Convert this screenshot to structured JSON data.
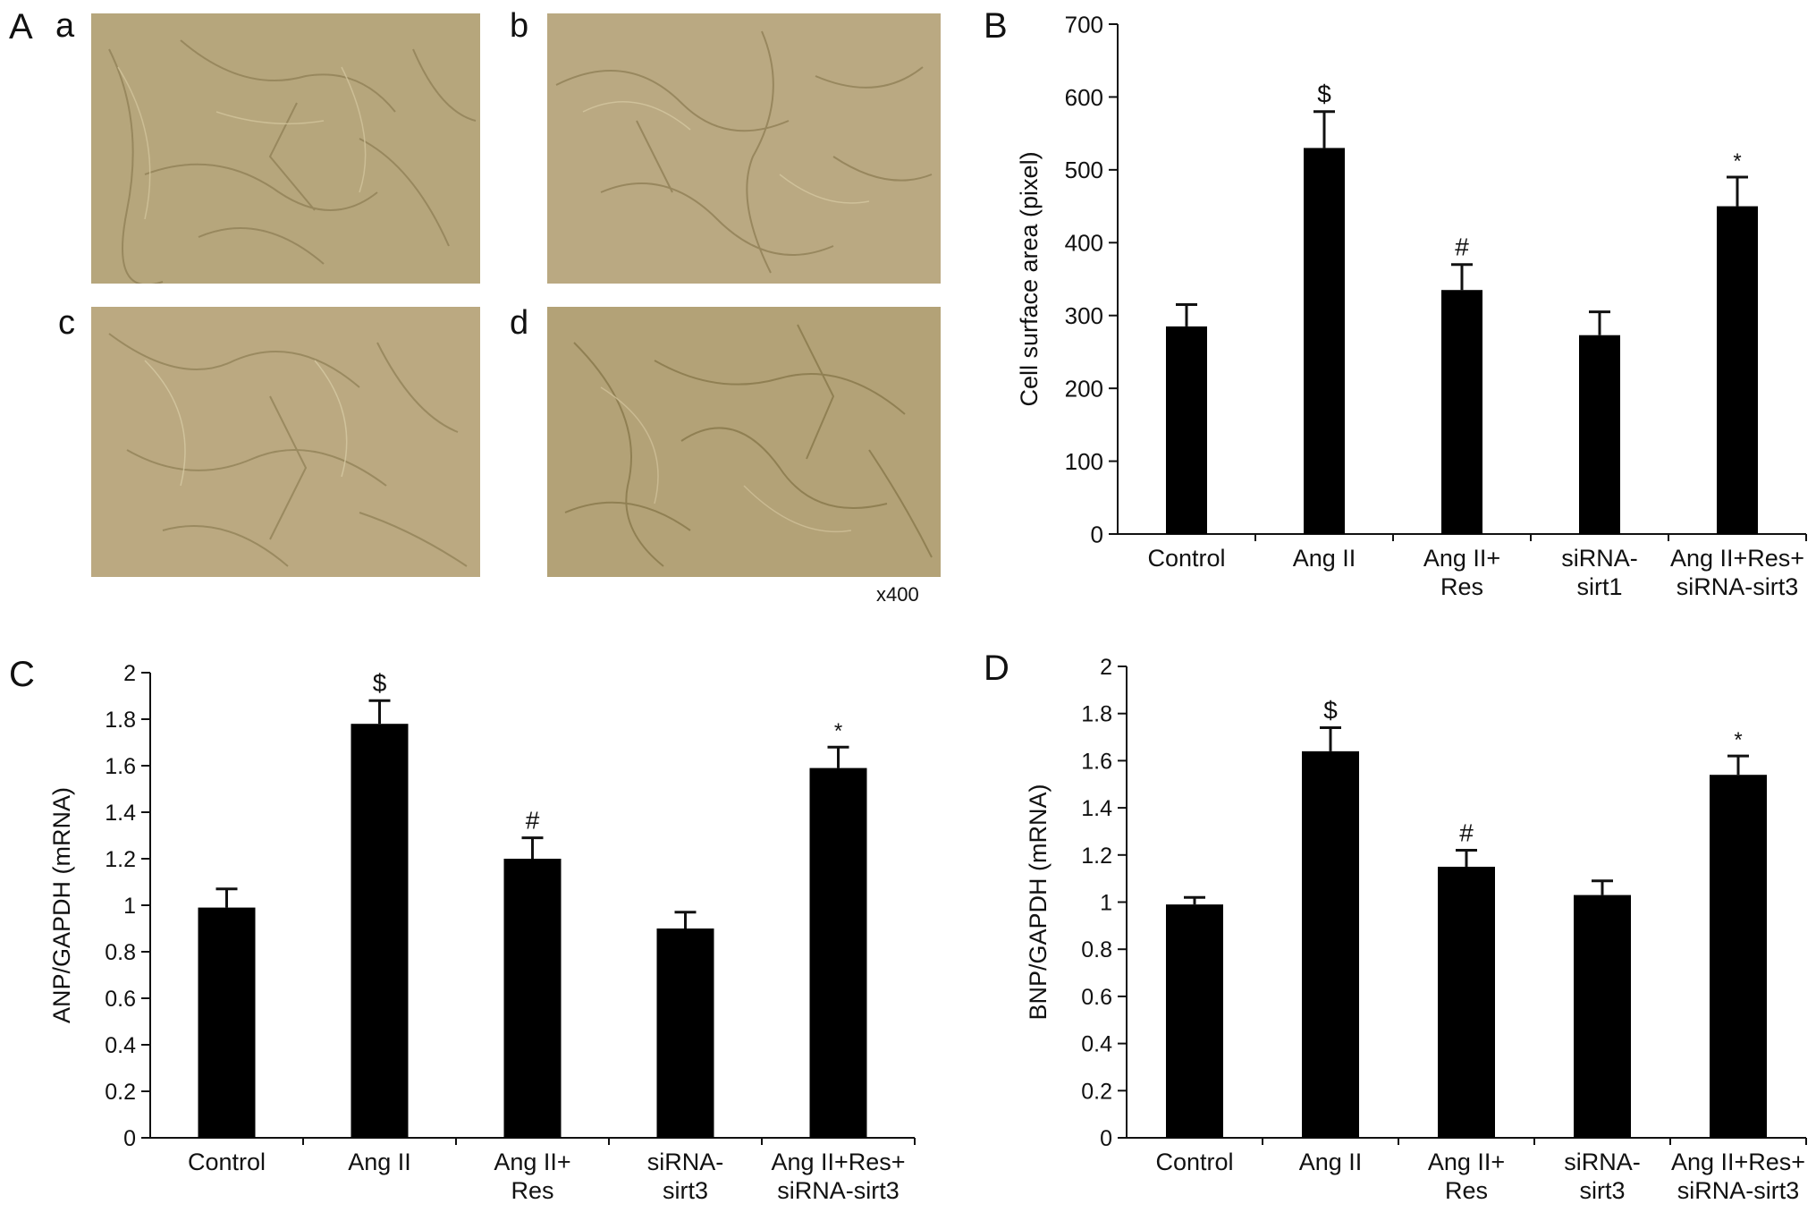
{
  "panels": {
    "A": {
      "letter": "A",
      "sublabels": [
        "a",
        "b",
        "c",
        "d"
      ],
      "magnification": "x400",
      "image_colors": {
        "base": "#b5a47a",
        "light": "#c7b78d",
        "dark": "#8f7f55"
      }
    }
  },
  "chart_data": [
    {
      "panel": "B",
      "type": "bar",
      "categories": [
        [
          "Control"
        ],
        [
          "Ang II"
        ],
        [
          "Ang II+",
          "Res"
        ],
        [
          "siRNA-",
          "sirt1"
        ],
        [
          "Ang II+Res+",
          "siRNA-sirt3"
        ]
      ],
      "values": [
        285,
        530,
        335,
        273,
        450
      ],
      "errors": [
        30,
        50,
        35,
        32,
        40
      ],
      "annotations": [
        "",
        "$",
        "#",
        "",
        "*"
      ],
      "ylabel": "Cell surface area (pixel)",
      "ylim": [
        0,
        700
      ],
      "yticks": [
        0,
        100,
        200,
        300,
        400,
        500,
        600,
        700
      ],
      "ytick_labels": [
        "0",
        "100",
        "200",
        "300",
        "400",
        "500",
        "600",
        "700"
      ],
      "bar_color": "#000000",
      "grid": false
    },
    {
      "panel": "C",
      "type": "bar",
      "categories": [
        [
          "Control"
        ],
        [
          "Ang II"
        ],
        [
          "Ang II+",
          "Res"
        ],
        [
          "siRNA-",
          "sirt3"
        ],
        [
          "Ang II+Res+",
          "siRNA-sirt3"
        ]
      ],
      "values": [
        0.99,
        1.78,
        1.2,
        0.9,
        1.59
      ],
      "errors": [
        0.08,
        0.1,
        0.09,
        0.07,
        0.09
      ],
      "annotations": [
        "",
        "$",
        "#",
        "",
        "*"
      ],
      "ylabel": "ANP/GAPDH (mRNA)",
      "ylim": [
        0,
        2
      ],
      "yticks": [
        0,
        0.2,
        0.4,
        0.6,
        0.8,
        1,
        1.2,
        1.4,
        1.6,
        1.8,
        2
      ],
      "ytick_labels": [
        "0",
        "0.2",
        "0.4",
        "0.6",
        "0.8",
        "1",
        "1.2",
        "1.4",
        "1.6",
        "1.8",
        "2"
      ],
      "bar_color": "#000000",
      "grid": false
    },
    {
      "panel": "D",
      "type": "bar",
      "categories": [
        [
          "Control"
        ],
        [
          "Ang II"
        ],
        [
          "Ang II+",
          "Res"
        ],
        [
          "siRNA-",
          "sirt3"
        ],
        [
          "Ang II+Res+",
          "siRNA-sirt3"
        ]
      ],
      "values": [
        0.99,
        1.64,
        1.15,
        1.03,
        1.54
      ],
      "errors": [
        0.03,
        0.1,
        0.07,
        0.06,
        0.08
      ],
      "annotations": [
        "",
        "$",
        "#",
        "",
        "*"
      ],
      "ylabel": "BNP/GAPDH (mRNA)",
      "ylim": [
        0,
        2
      ],
      "yticks": [
        0,
        0.2,
        0.4,
        0.6,
        0.8,
        1,
        1.2,
        1.4,
        1.6,
        1.8,
        2
      ],
      "ytick_labels": [
        "0",
        "0.2",
        "0.4",
        "0.6",
        "0.8",
        "1",
        "1.2",
        "1.4",
        "1.6",
        "1.8",
        "2"
      ],
      "bar_color": "#000000",
      "grid": false
    }
  ]
}
